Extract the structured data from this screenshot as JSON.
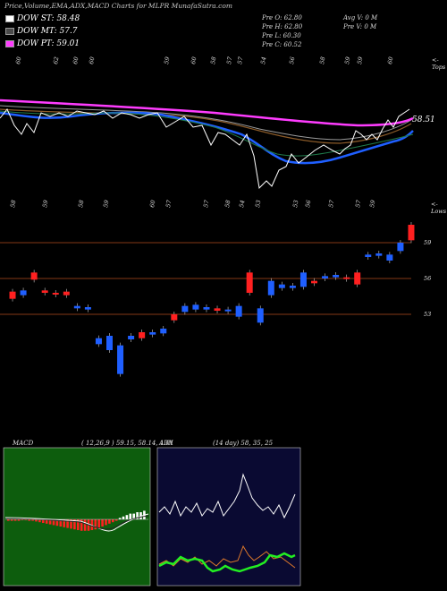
{
  "header": {
    "title": "Price,Volume,EMA,ADX,MACD Charts for MLPR MunafaSutra.com"
  },
  "legend": [
    {
      "label": "DOW ST: 58.48",
      "color": "#ffffff"
    },
    {
      "label": "DOW MT: 57.7",
      "color": "#4a4a4a"
    },
    {
      "label": "DOW PT: 59.01",
      "color": "#ff3cff"
    }
  ],
  "quote": {
    "pre_o": "Pre  O: 62.80",
    "pre_h": "Pre  H: 62.80",
    "pre_l": "Pre  L: 60.30",
    "pre_c": "Pre  C: 60.52",
    "avg_v": "Avg V: 0   M",
    "pre_v": "Pre  V: 0   M"
  },
  "top_labels": {
    "tops_word": "<-Tops",
    "lows_word": "<-Lows",
    "top_values": [
      "60",
      "62",
      "60",
      "60",
      "59",
      "60",
      "58",
      "57",
      "57",
      "54",
      "56",
      "58",
      "59",
      "59",
      "60"
    ],
    "low_values": [
      "58",
      "59",
      "58",
      "59",
      "60",
      "57",
      "57",
      "58",
      "54",
      "53",
      "53",
      "56",
      "57",
      "57",
      "59"
    ],
    "ema_last": "58.51"
  },
  "chart_data": {
    "type": "candlestick",
    "price_levels": [
      "59",
      "56",
      "53"
    ],
    "ema_last_value": 58.51,
    "candles": [
      {
        "o": 54.3,
        "c": 54.9,
        "color": "red"
      },
      {
        "o": 54.6,
        "c": 55.0,
        "color": "blue"
      },
      {
        "o": 55.9,
        "c": 56.5,
        "color": "red"
      },
      {
        "o": 54.8,
        "c": 55.0,
        "color": "red"
      },
      {
        "o": 54.7,
        "c": 54.8,
        "color": "red"
      },
      {
        "o": 54.6,
        "c": 54.9,
        "color": "red"
      },
      {
        "o": 53.5,
        "c": 53.7,
        "color": "blue"
      },
      {
        "o": 53.4,
        "c": 53.6,
        "color": "blue"
      },
      {
        "o": 51.0,
        "c": 50.5,
        "color": "blue"
      },
      {
        "o": 51.2,
        "c": 50.0,
        "color": "blue"
      },
      {
        "o": 48.0,
        "c": 50.4,
        "color": "blue"
      },
      {
        "o": 50.9,
        "c": 51.2,
        "color": "blue"
      },
      {
        "o": 51.0,
        "c": 51.5,
        "color": "red"
      },
      {
        "o": 51.3,
        "c": 51.5,
        "color": "blue"
      },
      {
        "o": 51.4,
        "c": 51.8,
        "color": "blue"
      },
      {
        "o": 52.5,
        "c": 53.0,
        "color": "red"
      },
      {
        "o": 53.2,
        "c": 53.7,
        "color": "blue"
      },
      {
        "o": 53.4,
        "c": 53.8,
        "color": "blue"
      },
      {
        "o": 53.4,
        "c": 53.6,
        "color": "blue"
      },
      {
        "o": 53.3,
        "c": 53.5,
        "color": "red"
      },
      {
        "o": 53.3,
        "c": 53.4,
        "color": "blue"
      },
      {
        "o": 52.8,
        "c": 53.7,
        "color": "blue"
      },
      {
        "o": 54.8,
        "c": 56.5,
        "color": "red"
      },
      {
        "o": 53.5,
        "c": 52.3,
        "color": "blue"
      },
      {
        "o": 54.6,
        "c": 55.8,
        "color": "blue"
      },
      {
        "o": 55.2,
        "c": 55.5,
        "color": "blue"
      },
      {
        "o": 55.2,
        "c": 55.4,
        "color": "blue"
      },
      {
        "o": 55.3,
        "c": 56.5,
        "color": "blue"
      },
      {
        "o": 55.6,
        "c": 55.8,
        "color": "red"
      },
      {
        "o": 56.0,
        "c": 56.2,
        "color": "blue"
      },
      {
        "o": 56.1,
        "c": 56.3,
        "color": "blue"
      },
      {
        "o": 56.0,
        "c": 56.1,
        "color": "red"
      },
      {
        "o": 55.5,
        "c": 56.5,
        "color": "red"
      },
      {
        "o": 57.8,
        "c": 58.0,
        "color": "blue"
      },
      {
        "o": 57.9,
        "c": 58.1,
        "color": "blue"
      },
      {
        "o": 57.5,
        "c": 58.0,
        "color": "blue"
      },
      {
        "o": 58.3,
        "c": 59.0,
        "color": "blue"
      },
      {
        "o": 59.2,
        "c": 60.5,
        "color": "red"
      }
    ]
  },
  "macd": {
    "label": "MACD",
    "params": "( 12,26,9 ) 59.15,  58.14,  1.01"
  },
  "adx": {
    "label": "ADX",
    "params": "(14 day) 58,  35,  25"
  },
  "colors": {
    "bg": "#000000",
    "grid": "#b04a1e",
    "ema_pink": "#ff3cff",
    "ema_blue": "#1f5fff",
    "macd_bg": "#0d5d0d",
    "adx_bg": "#0a0a32",
    "candle_up": "#1f5fff",
    "candle_down": "#ff2020"
  }
}
